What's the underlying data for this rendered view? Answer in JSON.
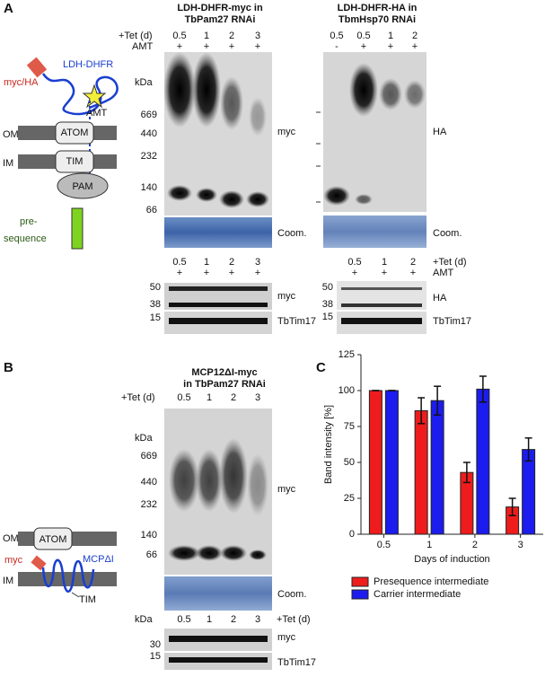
{
  "panel_a": {
    "letter": "A",
    "diagram": {
      "tag": "myc/HA",
      "protein": "LDH-DHFR",
      "drug": "AMT",
      "om": "OM",
      "im": "IM",
      "atom": "ATOM",
      "tim": "TIM",
      "pam": "PAM",
      "presequence": [
        "pre-",
        "sequence"
      ]
    },
    "blot_left": {
      "title": [
        "LDH-DHFR-myc in",
        "TbPam27 RNAi"
      ],
      "tet_label": "+Tet (d)",
      "amt_label": "AMT",
      "days": [
        "0.5",
        "1",
        "2",
        "3"
      ],
      "amt": [
        "+",
        "+",
        "+",
        "+"
      ],
      "kda": "kDa",
      "markers": [
        "669",
        "440",
        "232",
        "140",
        "66"
      ],
      "antibody": "myc",
      "stain": "Coom.",
      "lower": {
        "days": [
          "0.5",
          "1",
          "2",
          "3"
        ],
        "amt": [
          "+",
          "+",
          "+",
          "+"
        ],
        "markers": [
          "50",
          "38",
          "15"
        ],
        "antibody": "myc",
        "loading": "TbTim17"
      }
    },
    "blot_right": {
      "title": [
        "LDH-DHFR-HA in",
        "TbmHsp70 RNAi"
      ],
      "days": [
        "0.5",
        "0.5",
        "1",
        "2"
      ],
      "amt": [
        "-",
        "+",
        "+",
        "+"
      ],
      "antibody": "HA",
      "stain": "Coom.",
      "lower": {
        "days": [
          "0.5",
          "1",
          "2"
        ],
        "amt": [
          "+",
          "+",
          "+"
        ],
        "tet_label": "+Tet (d)",
        "amt_label": "AMT",
        "markers": [
          "50",
          "38",
          "15"
        ],
        "antibody": "HA",
        "loading": "TbTim17"
      }
    }
  },
  "panel_b": {
    "letter": "B",
    "diagram": {
      "om": "OM",
      "im": "IM",
      "atom": "ATOM",
      "tim": "TIM",
      "tag": "myc",
      "protein": "MCPΔI"
    },
    "blot": {
      "title": [
        "MCP12ΔI-myc",
        "in TbPam27 RNAi"
      ],
      "tet_label": "+Tet (d)",
      "days": [
        "0.5",
        "1",
        "2",
        "3"
      ],
      "kda": "kDa",
      "markers": [
        "669",
        "440",
        "232",
        "140",
        "66"
      ],
      "antibody": "myc",
      "stain": "Coom.",
      "lower": {
        "kda": "kDa",
        "days": [
          "0.5",
          "1",
          "2",
          "3"
        ],
        "tet_label": "+Tet (d)",
        "markers": [
          "30",
          "15"
        ],
        "antibody": "myc",
        "loading": "TbTim17"
      }
    }
  },
  "panel_c": {
    "letter": "C"
  },
  "chart_data": {
    "type": "bar",
    "x_label": "Days of induction",
    "y_label": "Band intensity [%]",
    "categories": [
      "0.5",
      "1",
      "2",
      "3"
    ],
    "series": [
      {
        "name": "Presequence intermediate",
        "color": "#ee1c1c",
        "values": [
          100,
          86,
          43,
          19
        ],
        "errors": [
          0,
          9,
          7,
          6
        ]
      },
      {
        "name": "Carrier intermediate",
        "color": "#1c1cee",
        "values": [
          100,
          93,
          101,
          59
        ],
        "errors": [
          0,
          10,
          9,
          8
        ]
      }
    ],
    "ylim": [
      0,
      125
    ],
    "yticks": [
      0,
      25,
      50,
      75,
      100,
      125
    ]
  }
}
